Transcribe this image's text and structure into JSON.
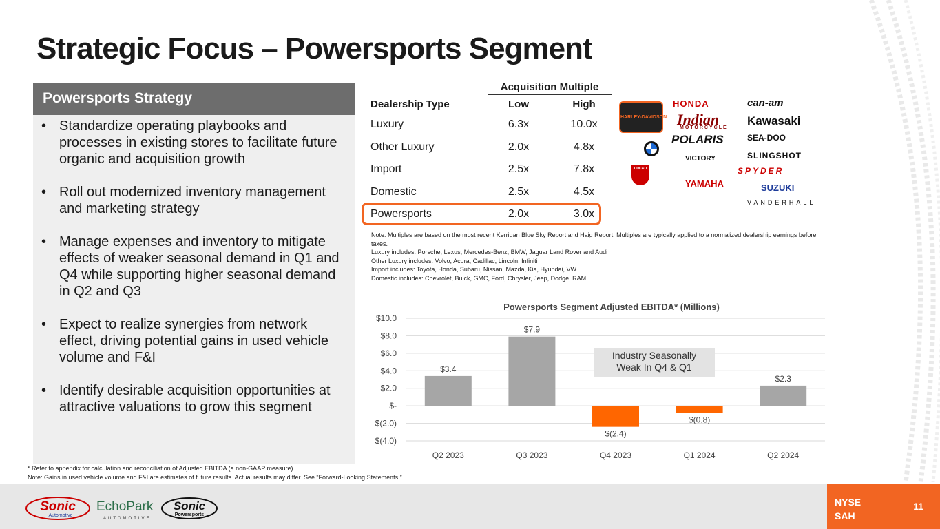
{
  "title": "Strategic Focus – Powersports Segment",
  "strategy": {
    "heading": "Powersports Strategy",
    "bullet_char": "•",
    "items": [
      "Standardize operating playbooks and processes in existing stores to facilitate future organic and acquisition growth",
      "Roll out modernized inventory management and marketing strategy",
      "Manage expenses and inventory to mitigate effects of weaker seasonal demand in Q1 and Q4 while supporting higher seasonal demand in Q2 and Q3",
      "Expect to realize synergies from network effect, driving potential gains in used vehicle volume and F&I",
      "Identify desirable acquisition opportunities at attractive valuations to grow this segment"
    ]
  },
  "multiples": {
    "group_header": "Acquisition Multiple",
    "col_type": "Dealership Type",
    "col_low": "Low",
    "col_high": "High",
    "rows": [
      {
        "type": "Luxury",
        "low": "6.3x",
        "high": "10.0x"
      },
      {
        "type": "Other Luxury",
        "low": "2.0x",
        "high": "4.8x"
      },
      {
        "type": "Import",
        "low": "2.5x",
        "high": "7.8x"
      },
      {
        "type": "Domestic",
        "low": "2.5x",
        "high": "4.5x"
      },
      {
        "type": "Powersports",
        "low": "2.0x",
        "high": "3.0x"
      }
    ]
  },
  "brands": {
    "harley": "HARLEY-DAVIDSON",
    "honda": "HONDA",
    "canam": "can-am",
    "indian": "Indian",
    "indian_sub": "MOTORCYCLE",
    "kawasaki": "Kawasaki",
    "polaris": "POLARIS",
    "seadoo": "SEA-DOO",
    "victory": "VICTORY",
    "slingshot": "SLINGSHOT",
    "ducati": "DUCATI",
    "yamaha": "YAMAHA",
    "spyder": "SPYDER",
    "suzuki": "SUZUKI",
    "vanderhall": "VANDERHALL"
  },
  "notes": [
    "Note: Multiples are based on the most recent Kerrigan Blue Sky Report and Haig Report. Multiples are typically applied to a normalized dealership earnings before taxes.",
    "Luxury includes: Porsche, Lexus, Mercedes-Benz, BMW, Jaguar Land Rover and Audi",
    "Other Luxury includes: Volvo, Acura, Cadillac, Lincoln, Infiniti",
    "Import includes: Toyota, Honda, Subaru, Nissan, Mazda, Kia, Hyundai, VW",
    "Domestic includes: Chevrolet, Buick, GMC, Ford, Chrysler, Jeep, Dodge, RAM"
  ],
  "chart_data": {
    "type": "bar",
    "title": "Powersports Segment Adjusted EBITDA* (Millions)",
    "categories": [
      "Q2 2023",
      "Q3 2023",
      "Q4 2023",
      "Q1 2024",
      "Q2 2024"
    ],
    "values": [
      3.4,
      7.9,
      -2.4,
      -0.8,
      2.3
    ],
    "data_labels": [
      "$3.4",
      "$7.9",
      "$(2.4)",
      "$(0.8)",
      "$2.3"
    ],
    "ylim": [
      -4,
      10
    ],
    "y_ticks": [
      10,
      8,
      6,
      4,
      2,
      0,
      -2,
      -4
    ],
    "y_tick_labels": [
      "$10.0",
      "$8.0",
      "$6.0",
      "$4.0",
      "$2.0",
      "$-",
      "$(2.0)",
      "$(4.0)"
    ],
    "annotation": "Industry Seasonally Weak In Q4 & Q1",
    "annotation_lines": [
      "Industry Seasonally",
      "Weak In Q4 & Q1"
    ],
    "positive_color": "#a6a6a6",
    "negative_color": "#ff6600",
    "gridlines": true
  },
  "footnotes": [
    "* Refer to appendix for calculation and reconciliation of Adjusted EBITDA (a non-GAAP measure).",
    "Note: Gains in used vehicle volume and F&I are estimates of future results. Actual results may differ. See “Forward-Looking Statements.”"
  ],
  "footer": {
    "logo_sonic": "Sonic",
    "logo_sonic_sub": "Automotive",
    "logo_echopark": "EchoPark",
    "logo_echopark_sub": "AUTOMOTIVE",
    "logo_powersports": "Sonic",
    "logo_powersports_sub": "Powersports",
    "exchange": "NYSE",
    "ticker": "SAH",
    "page_number": "11"
  },
  "colors": {
    "accent": "#f26522",
    "header_gray": "#6d6d6d",
    "panel_gray": "#efefef",
    "footer_gray": "#e7e7e7"
  }
}
